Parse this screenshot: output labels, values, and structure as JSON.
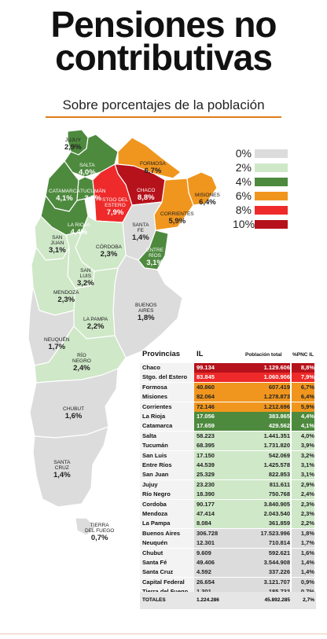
{
  "title_line1": "Pensiones no",
  "title_line2": "contributivas",
  "subtitle": "Sobre porcentajes de la población",
  "legend": [
    {
      "label": "0%",
      "color": "#dcdcdc"
    },
    {
      "label": "2%",
      "color": "#cfe8c8"
    },
    {
      "label": "4%",
      "color": "#4e8a3e"
    },
    {
      "label": "6%",
      "color": "#f0961e"
    },
    {
      "label": "8%",
      "color": "#ee2a2a"
    },
    {
      "label": "10%",
      "color": "#b5121b"
    }
  ],
  "map_labels": {
    "jujuy": {
      "name": "JUJUY",
      "value": "2,9%"
    },
    "salta": {
      "name": "SALTA",
      "value": "4,0%"
    },
    "formosa": {
      "name": "FORMOSA",
      "value": "6,7%"
    },
    "catamarca": {
      "name": "CATAMARCA",
      "value": "4,1%"
    },
    "tucuman": {
      "name": "TUCUMÁN",
      "value": "3,9%"
    },
    "stgo": {
      "name1": "STGO DEL",
      "name2": "ESTERO",
      "value": "7,9%"
    },
    "chaco": {
      "name": "CHACO",
      "value": "8,8%"
    },
    "misiones": {
      "name": "MISIONES",
      "value": "6,4%"
    },
    "larioja": {
      "name": "LA RIOJA",
      "value": "4,4%"
    },
    "corrientes": {
      "name": "CORRIENTES",
      "value": "5,9%"
    },
    "santafe": {
      "name1": "SANTA",
      "name2": "FE",
      "value": "1,4%"
    },
    "sanjuan": {
      "name1": "SAN",
      "name2": "JUAN",
      "value": "3,1%"
    },
    "cordoba": {
      "name": "CÓRDOBA",
      "value": "2,3%"
    },
    "entrerios": {
      "name1": "ENTRE",
      "name2": "RÍOS",
      "value": "3,1%"
    },
    "sanluis": {
      "name1": "SAN",
      "name2": "LUIS",
      "value": "3,2%"
    },
    "mendoza": {
      "name": "MENDOZA",
      "value": "2,3%"
    },
    "buenosaires": {
      "name1": "BUENOS",
      "name2": "AIRES",
      "value": "1,8%"
    },
    "lapampa": {
      "name": "LA PAMPA",
      "value": "2,2%"
    },
    "neuquen": {
      "name": "NEUQUÉN",
      "value": "1,7%"
    },
    "rionegro": {
      "name1": "RÍO",
      "name2": "NEGRO",
      "value": "2,4%"
    },
    "chubut": {
      "name": "CHUBUT",
      "value": "1,6%"
    },
    "santacruz": {
      "name1": "SANTA",
      "name2": "CRUZ",
      "value": "1,4%"
    },
    "tierra": {
      "name1": "TIERRA",
      "name2": "DEL FUEGO",
      "value": "0,7%"
    }
  },
  "table": {
    "headers": [
      "Provincias",
      "IL",
      "Población total",
      "%PNC IL"
    ],
    "rows": [
      {
        "prov": "Chaco",
        "il": "99.134",
        "pob": "1.129.606",
        "pct": "8,8%",
        "bg": "#b5121b",
        "fg": "#ffffff"
      },
      {
        "prov": "Stgo. del Estero",
        "il": "83.845",
        "pob": "1.060.906",
        "pct": "7,9%",
        "bg": "#ee2a2a",
        "fg": "#ffffff"
      },
      {
        "prov": "Formosa",
        "il": "40.860",
        "pob": "607.419",
        "pct": "6,7%",
        "bg": "#f0961e",
        "fg": "#222222"
      },
      {
        "prov": "Misiones",
        "il": "82.064",
        "pob": "1.278.873",
        "pct": "6,4%",
        "bg": "#f0961e",
        "fg": "#222222"
      },
      {
        "prov": "Corrientes",
        "il": "72.146",
        "pob": "1.212.696",
        "pct": "5,9%",
        "bg": "#f0961e",
        "fg": "#222222"
      },
      {
        "prov": "La Rioja",
        "il": "17.056",
        "pob": "383.865",
        "pct": "4,4%",
        "bg": "#4e8a3e",
        "fg": "#ffffff"
      },
      {
        "prov": "Catamarca",
        "il": "17.659",
        "pob": "429.562",
        "pct": "4,1%",
        "bg": "#4e8a3e",
        "fg": "#ffffff"
      },
      {
        "prov": "Salta",
        "il": "58.223",
        "pob": "1.441.351",
        "pct": "4,0%",
        "bg": "#cfe8c8",
        "fg": "#222222"
      },
      {
        "prov": "Tucumán",
        "il": "68.395",
        "pob": "1.731.820",
        "pct": "3,9%",
        "bg": "#cfe8c8",
        "fg": "#222222"
      },
      {
        "prov": "San Luis",
        "il": "17.150",
        "pob": "542.069",
        "pct": "3,2%",
        "bg": "#cfe8c8",
        "fg": "#222222"
      },
      {
        "prov": "Entre Ríos",
        "il": "44.539",
        "pob": "1.425.578",
        "pct": "3,1%",
        "bg": "#cfe8c8",
        "fg": "#222222"
      },
      {
        "prov": "San Juan",
        "il": "25.329",
        "pob": "822.853",
        "pct": "3,1%",
        "bg": "#cfe8c8",
        "fg": "#222222"
      },
      {
        "prov": "Jujuy",
        "il": "23.230",
        "pob": "811.611",
        "pct": "2,9%",
        "bg": "#cfe8c8",
        "fg": "#222222"
      },
      {
        "prov": "Río Negro",
        "il": "18.390",
        "pob": "750.768",
        "pct": "2,4%",
        "bg": "#cfe8c8",
        "fg": "#222222"
      },
      {
        "prov": "Cordoba",
        "il": "90.177",
        "pob": "3.840.905",
        "pct": "2,3%",
        "bg": "#cfe8c8",
        "fg": "#222222"
      },
      {
        "prov": "Mendoza",
        "il": "47.414",
        "pob": "2.043.540",
        "pct": "2,3%",
        "bg": "#cfe8c8",
        "fg": "#222222"
      },
      {
        "prov": "La Pampa",
        "il": "8.084",
        "pob": "361.859",
        "pct": "2,2%",
        "bg": "#cfe8c8",
        "fg": "#222222"
      },
      {
        "prov": "Buenos Aires",
        "il": "306.728",
        "pob": "17.523.996",
        "pct": "1,8%",
        "bg": "#dcdcdc",
        "fg": "#222222"
      },
      {
        "prov": "Neuquén",
        "il": "12.301",
        "pob": "710.814",
        "pct": "1,7%",
        "bg": "#dcdcdc",
        "fg": "#222222"
      },
      {
        "prov": "Chubut",
        "il": "9.609",
        "pob": "592.621",
        "pct": "1,6%",
        "bg": "#dcdcdc",
        "fg": "#222222"
      },
      {
        "prov": "Santa Fé",
        "il": "49.406",
        "pob": "3.544.908",
        "pct": "1,4%",
        "bg": "#dcdcdc",
        "fg": "#222222"
      },
      {
        "prov": "Santa Cruz",
        "il": "4.592",
        "pob": "337.226",
        "pct": "1,4%",
        "bg": "#dcdcdc",
        "fg": "#222222"
      },
      {
        "prov": "Capital Federal",
        "il": "26.654",
        "pob": "3.121.707",
        "pct": "0,9%",
        "bg": "#dcdcdc",
        "fg": "#222222"
      },
      {
        "prov": "Tierra del Fuego",
        "il": "1.301",
        "pob": "185.732",
        "pct": "0,7%",
        "bg": "#dcdcdc",
        "fg": "#222222"
      }
    ],
    "totals": {
      "label": "TOTALES",
      "il": "1.224.286",
      "pob": "45.892.285",
      "pct": "2,7%"
    }
  },
  "colors": {
    "map_light": "#cfe8c8",
    "map_green": "#4e8a3e",
    "map_orange": "#f0961e",
    "map_red": "#ee2a2a",
    "map_darkred": "#b5121b",
    "map_gray": "#dcdcdc",
    "accent_rule": "#e07b1a"
  }
}
